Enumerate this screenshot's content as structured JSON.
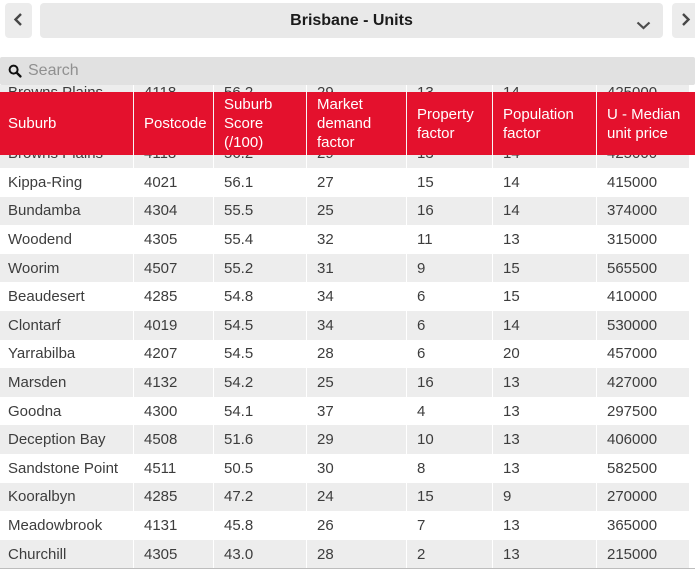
{
  "topbar": {
    "selector_value": "Brisbane - Units",
    "icons": {
      "prev": "chevron-left",
      "next": "chevron-right",
      "open_dropdown": "chevron-down",
      "search": "magnifier"
    }
  },
  "search": {
    "placeholder": "Search",
    "value": ""
  },
  "table": {
    "columns": [
      "Suburb",
      "Postcode",
      "Suburb Score (/100)",
      "Market demand factor",
      "Property factor",
      "Population factor",
      "U - Median unit price"
    ],
    "column_keys": [
      "suburb",
      "postcode",
      "suburb-score",
      "market-demand-factor",
      "property-factor",
      "population-factor",
      "median-unit-price"
    ],
    "partial_row": [
      "Browns Plains",
      "4118",
      "56.2",
      "29",
      "13",
      "14",
      "425000"
    ],
    "rows": [
      [
        "Kippa-Ring",
        "4021",
        "56.1",
        "27",
        "15",
        "14",
        "415000"
      ],
      [
        "Bundamba",
        "4304",
        "55.5",
        "25",
        "16",
        "14",
        "374000"
      ],
      [
        "Woodend",
        "4305",
        "55.4",
        "32",
        "11",
        "13",
        "315000"
      ],
      [
        "Woorim",
        "4507",
        "55.2",
        "31",
        "9",
        "15",
        "565500"
      ],
      [
        "Beaudesert",
        "4285",
        "54.8",
        "34",
        "6",
        "15",
        "410000"
      ],
      [
        "Clontarf",
        "4019",
        "54.5",
        "34",
        "6",
        "14",
        "530000"
      ],
      [
        "Yarrabilba",
        "4207",
        "54.5",
        "28",
        "6",
        "20",
        "457000"
      ],
      [
        "Marsden",
        "4132",
        "54.2",
        "25",
        "16",
        "13",
        "427000"
      ],
      [
        "Goodna",
        "4300",
        "54.1",
        "37",
        "4",
        "13",
        "297500"
      ],
      [
        "Deception Bay",
        "4508",
        "51.6",
        "29",
        "10",
        "13",
        "406000"
      ],
      [
        "Sandstone Point",
        "4511",
        "50.5",
        "30",
        "8",
        "13",
        "582500"
      ],
      [
        "Kooralbyn",
        "4285",
        "47.2",
        "24",
        "15",
        "9",
        "270000"
      ],
      [
        "Meadowbrook",
        "4131",
        "45.8",
        "26",
        "7",
        "13",
        "365000"
      ],
      [
        "Churchill",
        "4305",
        "43.0",
        "28",
        "2",
        "13",
        "215000"
      ]
    ]
  },
  "colors": {
    "header_red": "#e4112d",
    "row_alt": "#ededed",
    "control_bg": "#e9e9e9",
    "search_bg": "#e1e1e1"
  }
}
